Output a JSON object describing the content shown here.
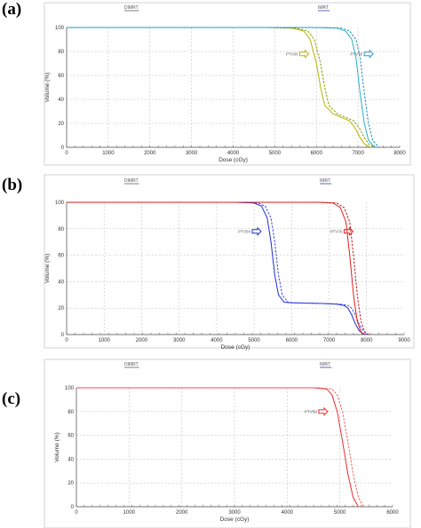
{
  "chart_data": [
    {
      "panel": "(a)",
      "type": "line",
      "legend": [
        "DIMRT",
        "IMRT"
      ],
      "xlabel": "Dose (cGy)",
      "ylabel": "Volume (%)",
      "xlim": [
        0,
        8000
      ],
      "ylim": [
        0,
        100
      ],
      "xticks": [
        0,
        1000,
        2000,
        3000,
        4000,
        5000,
        6000,
        7000,
        8000
      ],
      "yticks": [
        0,
        20,
        40,
        60,
        80,
        100
      ],
      "grid": "dashed",
      "series": [
        {
          "name": "PTV60",
          "color": "#b8b400",
          "x": [
            0,
            4800,
            5400,
            5700,
            5850,
            6000,
            6100,
            6200,
            6400,
            6600,
            6800,
            6950,
            7050,
            7150,
            7300
          ],
          "y": [
            100,
            100,
            99.5,
            97,
            90,
            70,
            50,
            35,
            28,
            25,
            22,
            15,
            8,
            3,
            0
          ]
        },
        {
          "name": "PTV60",
          "color": "#8a9a00",
          "x": [
            0,
            4900,
            5500,
            5800,
            5950,
            6100,
            6200,
            6300,
            6500,
            6700,
            6900,
            7050,
            7150,
            7250,
            7400
          ],
          "y": [
            100,
            100,
            99.5,
            97,
            90,
            70,
            50,
            35,
            28,
            25,
            22,
            15,
            8,
            3,
            0
          ]
        },
        {
          "name": "PTV70",
          "color": "#29b0c8",
          "x": [
            0,
            6000,
            6500,
            6700,
            6850,
            6950,
            7050,
            7150,
            7250,
            7400
          ],
          "y": [
            100,
            100,
            99.5,
            97,
            90,
            75,
            45,
            20,
            6,
            0
          ]
        },
        {
          "name": "PTV70",
          "color": "#1a8fb0",
          "x": [
            0,
            6100,
            6600,
            6800,
            6950,
            7050,
            7150,
            7250,
            7350,
            7500
          ],
          "y": [
            100,
            100,
            99.5,
            97,
            90,
            75,
            45,
            20,
            6,
            0
          ]
        }
      ],
      "annotations": [
        {
          "text": "PTV60",
          "x": 5600,
          "y": 78,
          "arrow_color": "#b8b400"
        },
        {
          "text": "PTV70",
          "x": 7150,
          "y": 78,
          "arrow_color": "#2a95c8"
        }
      ]
    },
    {
      "panel": "(b)",
      "type": "line",
      "legend": [
        "DIMRT",
        "IMRT"
      ],
      "xlabel": "Dose (cGy)",
      "ylabel": "Volume (%)",
      "xlim": [
        0,
        9000
      ],
      "ylim": [
        0,
        100
      ],
      "xticks": [
        0,
        1000,
        2000,
        3000,
        4000,
        5000,
        6000,
        7000,
        8000,
        9000
      ],
      "yticks": [
        0,
        20,
        40,
        60,
        80,
        100
      ],
      "grid": "dashed",
      "series": [
        {
          "name": "PTV54",
          "color": "#1f2bd0",
          "x": [
            0,
            4500,
            5000,
            5200,
            5350,
            5450,
            5550,
            5650,
            5800,
            6000,
            6800,
            7200,
            7400,
            7500,
            7600,
            7700,
            7800,
            7900,
            8000
          ],
          "y": [
            100,
            100,
            99.5,
            97,
            88,
            70,
            45,
            30,
            24.5,
            24,
            23.5,
            23,
            22,
            20,
            15,
            8,
            3,
            0.5,
            0
          ]
        },
        {
          "name": "PTV54",
          "color": "#3b45e8",
          "x": [
            0,
            4600,
            5100,
            5300,
            5450,
            5550,
            5650,
            5750,
            5900,
            6100,
            6900,
            7300,
            7500,
            7600,
            7700,
            7800,
            7900,
            8000,
            8100
          ],
          "y": [
            100,
            100,
            99.5,
            97,
            88,
            70,
            45,
            30,
            24.5,
            24,
            23.5,
            23,
            22,
            20,
            15,
            8,
            3,
            0.5,
            0
          ]
        },
        {
          "name": "PTV70",
          "color": "#e02020",
          "x": [
            0,
            6700,
            7100,
            7300,
            7450,
            7550,
            7650,
            7750,
            7850,
            7950
          ],
          "y": [
            100,
            100,
            99.5,
            96,
            85,
            60,
            30,
            10,
            2,
            0
          ]
        },
        {
          "name": "PTV70",
          "color": "#c01818",
          "x": [
            0,
            6800,
            7200,
            7400,
            7550,
            7650,
            7750,
            7850,
            7950,
            8050
          ],
          "y": [
            100,
            100,
            99.5,
            96,
            85,
            60,
            30,
            10,
            2,
            0
          ]
        }
      ],
      "annotations": [
        {
          "text": "PTV54",
          "x": 4950,
          "y": 78,
          "arrow_color": "#2030d0"
        },
        {
          "text": "PTV70",
          "x": 7400,
          "y": 78,
          "arrow_color": "#e02020"
        }
      ]
    },
    {
      "panel": "(c)",
      "type": "line",
      "legend": [
        "DIMRT",
        "IMRT"
      ],
      "xlabel": "Dose (cGy)",
      "ylabel": "Volume (%)",
      "xlim": [
        0,
        6000
      ],
      "ylim": [
        0,
        100
      ],
      "xticks": [
        0,
        1000,
        2000,
        3000,
        4000,
        5000,
        6000
      ],
      "yticks": [
        0,
        20,
        40,
        60,
        80,
        100
      ],
      "grid": "dashed",
      "series": [
        {
          "name": "PTV50",
          "color": "#e53030",
          "x": [
            0,
            4500,
            4750,
            4850,
            4950,
            5050,
            5150,
            5250,
            5350
          ],
          "y": [
            100,
            100,
            99,
            94,
            80,
            55,
            28,
            8,
            0
          ]
        },
        {
          "name": "PTV50",
          "color": "#f06060",
          "x": [
            0,
            4600,
            4850,
            4950,
            5050,
            5150,
            5250,
            5350,
            5450
          ],
          "y": [
            100,
            100,
            99,
            94,
            80,
            55,
            28,
            8,
            0
          ]
        }
      ],
      "annotations": [
        {
          "text": "PTV50",
          "x": 4600,
          "y": 80,
          "arrow_color": "#e53030"
        }
      ]
    }
  ]
}
